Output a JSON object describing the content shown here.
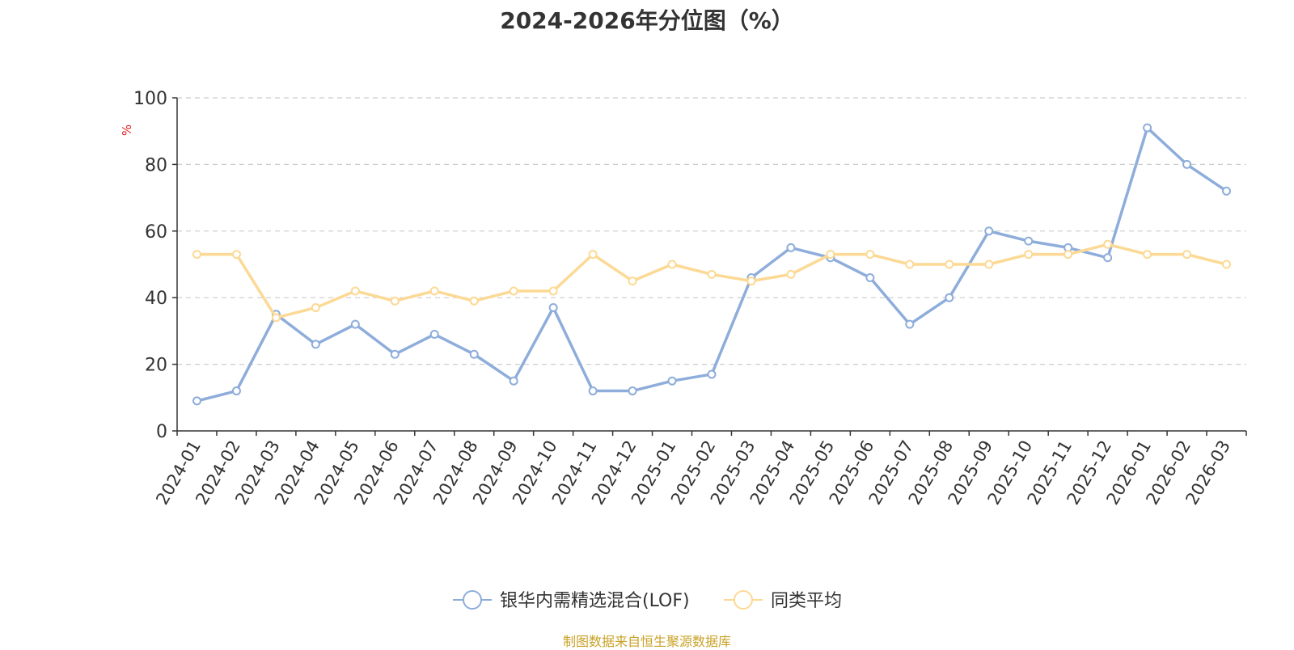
{
  "chart_data": {
    "type": "line",
    "title": "2024-2026年分位图（%）",
    "ylabel": "%",
    "xlabel": "",
    "ylim": [
      0,
      100
    ],
    "yticks": [
      0,
      20,
      40,
      60,
      80,
      100
    ],
    "grid": true,
    "legend_position": "bottom",
    "categories": [
      "2024-01",
      "2024-02",
      "2024-03",
      "2024-04",
      "2024-05",
      "2024-06",
      "2024-07",
      "2024-08",
      "2024-09",
      "2024-10",
      "2024-11",
      "2024-12",
      "2025-01",
      "2025-02",
      "2025-03",
      "2025-04",
      "2025-05",
      "2025-06",
      "2025-07",
      "2025-08",
      "2025-09",
      "2025-10",
      "2025-11",
      "2025-12",
      "2026-01",
      "2026-02",
      "2026-03"
    ],
    "series": [
      {
        "name": "银华内需精选混合(LOF)",
        "color": "#8eadda",
        "values": [
          9,
          12,
          35,
          26,
          32,
          23,
          29,
          23,
          15,
          37,
          12,
          12,
          15,
          17,
          46,
          55,
          52,
          46,
          32,
          40,
          60,
          57,
          55,
          52,
          91,
          80,
          72
        ]
      },
      {
        "name": "同类平均",
        "color": "#fcd994",
        "values": [
          53,
          53,
          34,
          37,
          42,
          39,
          42,
          39,
          42,
          42,
          53,
          45,
          50,
          47,
          45,
          47,
          53,
          53,
          50,
          50,
          50,
          53,
          53,
          56,
          53,
          53,
          50
        ]
      }
    ],
    "source_note": "制图数据来自恒生聚源数据库"
  }
}
